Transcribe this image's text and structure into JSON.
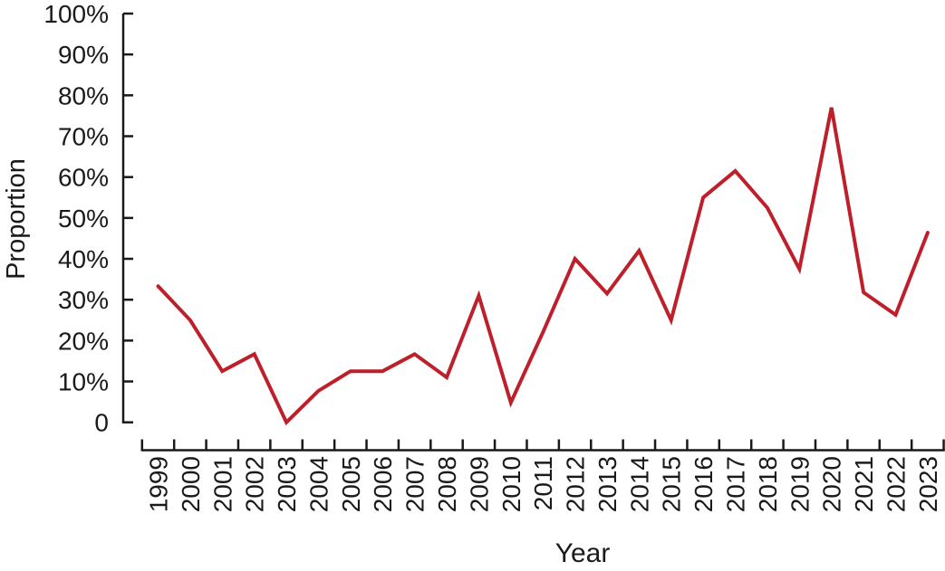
{
  "figure": {
    "background": "#ffffff",
    "axis_color": "#1a1a1a",
    "text_color": "#1a1a1a",
    "line_color": "#be202b",
    "xlabel": "Year",
    "ylabel": "Proportion"
  },
  "chart_data": {
    "type": "line",
    "title": "",
    "xlabel": "Year",
    "ylabel": "Proportion",
    "categories": [
      "1999",
      "2000",
      "2001",
      "2002",
      "2003",
      "2004",
      "2005",
      "2006",
      "2007",
      "2008",
      "2009",
      "2010",
      "2011",
      "2012",
      "2013",
      "2014",
      "2015",
      "2016",
      "2017",
      "2018",
      "2019",
      "2020",
      "2021",
      "2022",
      "2023"
    ],
    "series": [
      {
        "name": "Proportion",
        "color": "#be202b",
        "values": [
          33.3,
          25,
          12.5,
          16.7,
          0,
          7.7,
          12.5,
          12.5,
          16.7,
          11,
          31,
          4.8,
          22,
          40,
          31.5,
          42,
          25,
          55,
          61.5,
          52.5,
          37.5,
          77,
          31.8,
          26.3,
          46.4
        ]
      }
    ],
    "ylim": [
      0,
      100
    ],
    "ytick_interval": 10,
    "ytick_labels": [
      "0",
      "10%",
      "20%",
      "30%",
      "40%",
      "50%",
      "60%",
      "70%",
      "80%",
      "90%",
      "100%"
    ],
    "grid": false,
    "legend": "none",
    "x_tick_style": "between-categories",
    "tick_direction": "inward"
  }
}
